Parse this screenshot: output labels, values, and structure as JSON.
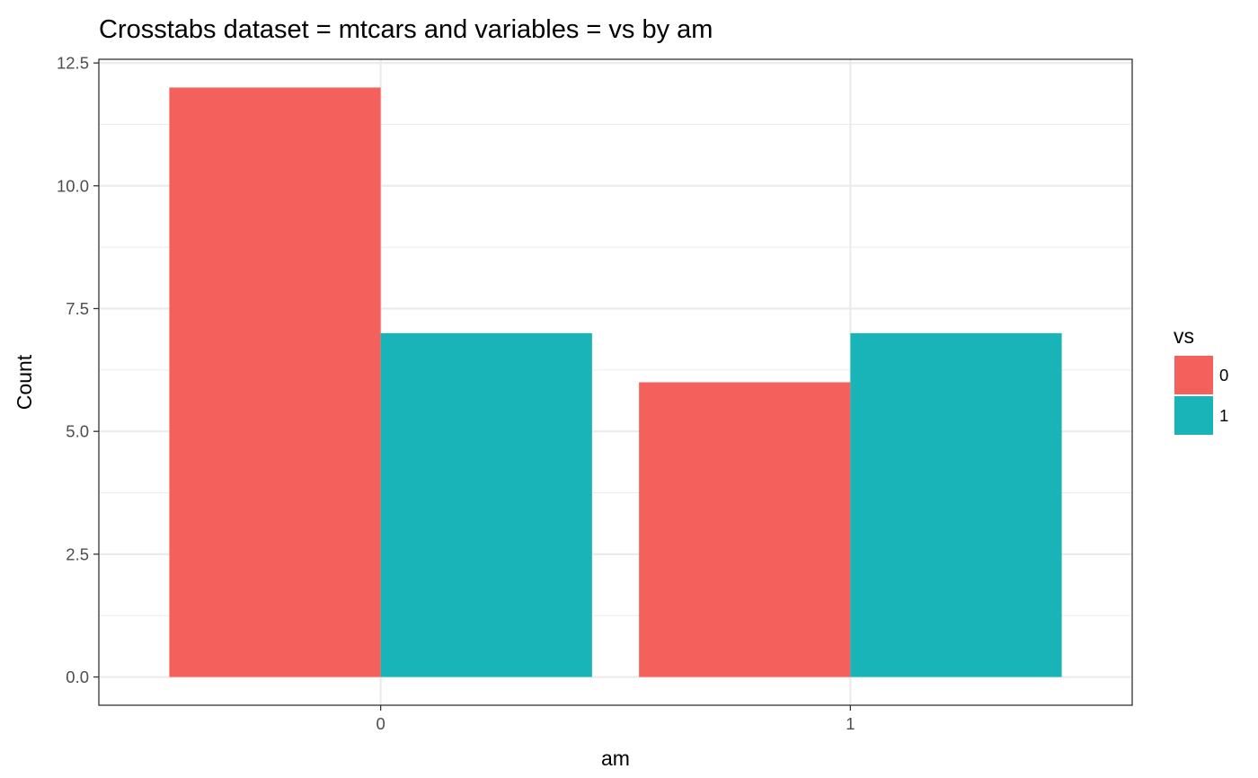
{
  "chart_data": {
    "type": "bar",
    "title": "Crosstabs dataset = mtcars and variables = vs by am",
    "xlabel": "am",
    "ylabel": "Count",
    "categories": [
      "0",
      "1"
    ],
    "series": [
      {
        "name": "0",
        "values": [
          12,
          6
        ],
        "color": "#F4605C"
      },
      {
        "name": "1",
        "values": [
          7,
          7
        ],
        "color": "#19B4B8"
      }
    ],
    "ylim": [
      -0.575,
      12.575
    ],
    "yticks": [
      0.0,
      2.5,
      5.0,
      7.5,
      10.0,
      12.5
    ],
    "ytick_labels": [
      "0.0",
      "2.5",
      "5.0",
      "7.5",
      "10.0",
      "12.5"
    ],
    "grid": true,
    "legend": {
      "title": "vs",
      "placement": "right"
    }
  }
}
